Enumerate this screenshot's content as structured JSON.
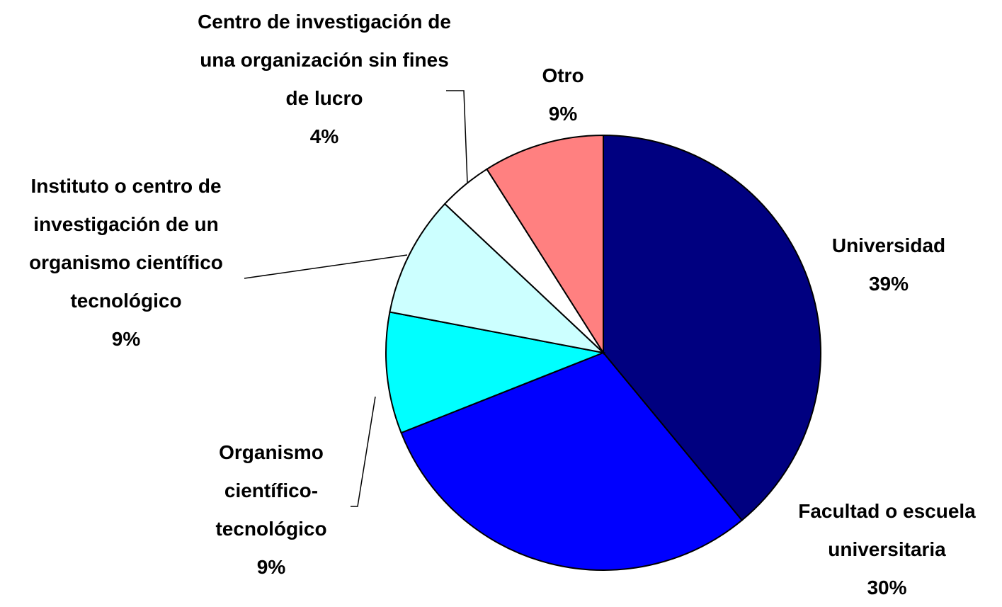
{
  "chart_data": {
    "type": "pie",
    "categories": [
      "Universidad",
      "Facultad o escuela universitaria",
      "Organismo científico-tecnológico",
      "Instituto o centro de investigación de un organismo científico tecnológico",
      "Centro de investigación de una organización sin fines de lucro",
      "Otro"
    ],
    "values": [
      39,
      30,
      9,
      9,
      4,
      9
    ],
    "value_labels": [
      "39%",
      "30%",
      "9%",
      "9%",
      "4%",
      "9%"
    ],
    "colors": [
      "#000080",
      "#0000ff",
      "#00ffff",
      "#ccffff",
      "#ffffff",
      "#ff8080"
    ]
  }
}
